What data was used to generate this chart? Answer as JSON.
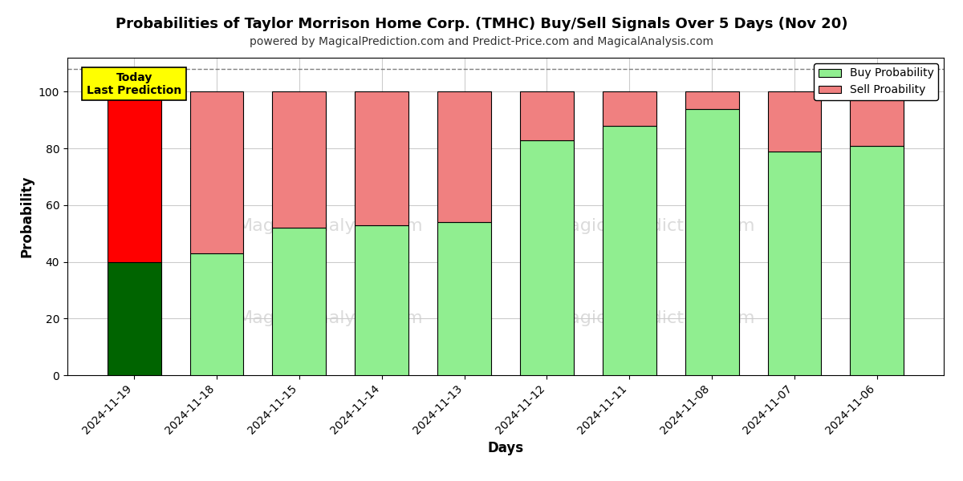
{
  "title": "Probabilities of Taylor Morrison Home Corp. (TMHC) Buy/Sell Signals Over 5 Days (Nov 20)",
  "subtitle": "powered by MagicalPrediction.com and Predict-Price.com and MagicalAnalysis.com",
  "xlabel": "Days",
  "ylabel": "Probability",
  "categories": [
    "2024-11-19",
    "2024-11-18",
    "2024-11-15",
    "2024-11-14",
    "2024-11-13",
    "2024-11-12",
    "2024-11-11",
    "2024-11-08",
    "2024-11-07",
    "2024-11-06"
  ],
  "buy_values": [
    40,
    43,
    52,
    53,
    54,
    83,
    88,
    94,
    79,
    81
  ],
  "sell_values": [
    60,
    57,
    48,
    47,
    46,
    17,
    12,
    6,
    21,
    19
  ],
  "today_buy_color": "#006400",
  "today_sell_color": "#ff0000",
  "buy_color": "#90ee90",
  "sell_color": "#f08080",
  "today_annotation_text": "Today\nLast Prediction",
  "today_annotation_bg": "#ffff00",
  "legend_buy_label": "Buy Probability",
  "legend_sell_label": "Sell Proability",
  "ylim": [
    0,
    112
  ],
  "yticks": [
    0,
    20,
    40,
    60,
    80,
    100
  ],
  "dashed_line_y": 108,
  "bg_color": "#ffffff",
  "grid_color": "#cccccc",
  "bar_edge_color": "#000000",
  "title_fontsize": 13,
  "subtitle_fontsize": 10,
  "axis_label_fontsize": 12,
  "tick_fontsize": 10,
  "bar_width": 0.65
}
